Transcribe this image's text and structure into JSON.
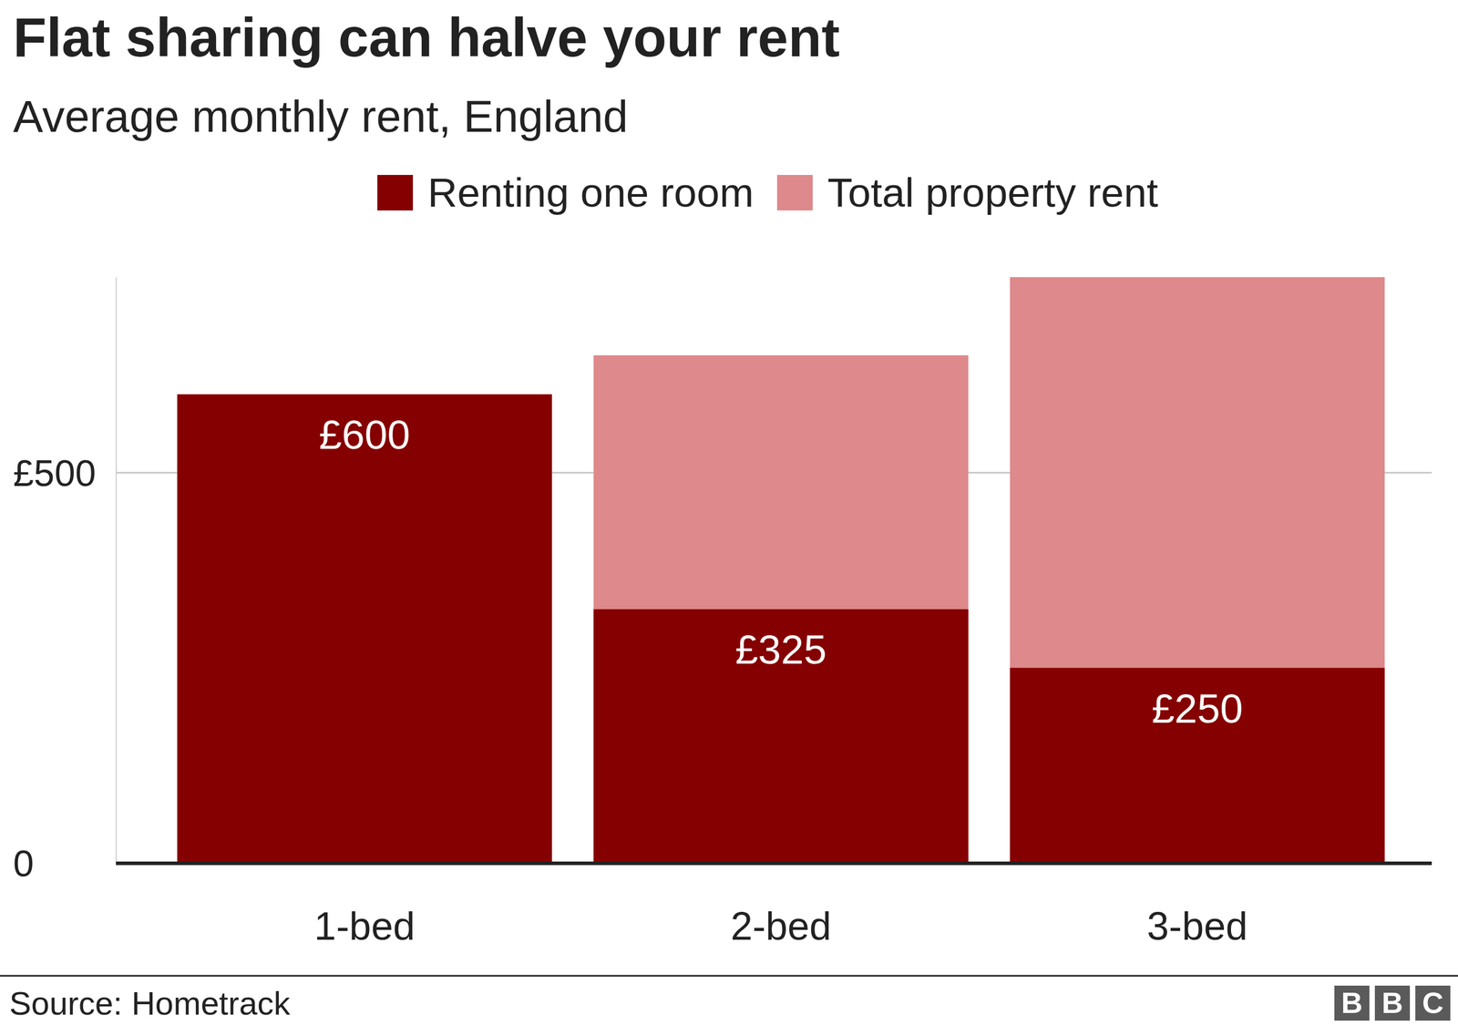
{
  "chart_data": {
    "type": "bar",
    "title": "Flat sharing can halve your rent",
    "subtitle": "Average monthly rent, England",
    "categories": [
      "1-bed",
      "2-bed",
      "3-bed"
    ],
    "series": [
      {
        "name": "Renting one room",
        "color": "#850000",
        "values": [
          600,
          325,
          250
        ],
        "value_labels": [
          "£600",
          "£325",
          "£250"
        ]
      },
      {
        "name": "Total property rent",
        "color": "#de898b",
        "values": [
          600,
          650,
          750
        ]
      }
    ],
    "stacked": false,
    "data_labels": true,
    "ylim": [
      0,
      750
    ],
    "yticks": [
      0,
      {
        "value": 500,
        "label": "£500"
      }
    ],
    "grid": true,
    "legend": "top",
    "source": "Source: Hometrack",
    "logo": "BBC"
  }
}
